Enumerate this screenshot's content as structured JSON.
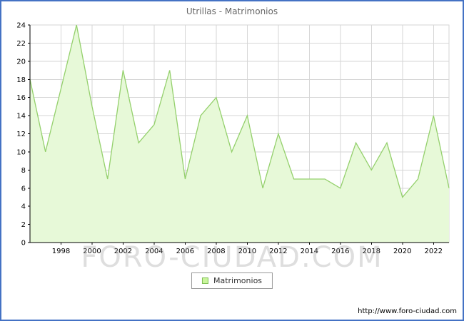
{
  "title": "Utrillas - Matrimonios",
  "watermark": "FORO-CIUDAD.COM",
  "footer": {
    "url": "http://www.foro-ciudad.com"
  },
  "legend": {
    "label": "Matrimonios"
  },
  "colors": {
    "frame": "#4472c4",
    "grid": "#d6d6d6",
    "axis": "#000000",
    "area_fill": "#e7f9d8",
    "line": "#94d06c",
    "legend_swatch_fill": "#c9f59c",
    "legend_swatch_border": "#7fbf54",
    "title_color": "#666666",
    "watermark_color": "#bbbbbb"
  },
  "chart_data": {
    "type": "area",
    "title": "Utrillas - Matrimonios",
    "xlabel": "",
    "ylabel": "",
    "x": [
      1996,
      1997,
      1998,
      1999,
      2000,
      2001,
      2002,
      2003,
      2004,
      2005,
      2006,
      2007,
      2008,
      2009,
      2010,
      2011,
      2012,
      2013,
      2014,
      2015,
      2016,
      2017,
      2018,
      2019,
      2020,
      2021,
      2022,
      2023
    ],
    "values": [
      18,
      10,
      17,
      24,
      15,
      7,
      19,
      11,
      13,
      19,
      7,
      14,
      16,
      10,
      14,
      6,
      12,
      7,
      7,
      7,
      6,
      11,
      8,
      11,
      5,
      7,
      14,
      6
    ],
    "series_name": "Matrimonios",
    "ylim": [
      0,
      24
    ],
    "ytick_step": 2,
    "xtick_labels": [
      1998,
      2000,
      2002,
      2004,
      2006,
      2008,
      2010,
      2012,
      2014,
      2016,
      2018,
      2020,
      2022
    ],
    "grid": true,
    "legend_position": "bottom-center"
  }
}
